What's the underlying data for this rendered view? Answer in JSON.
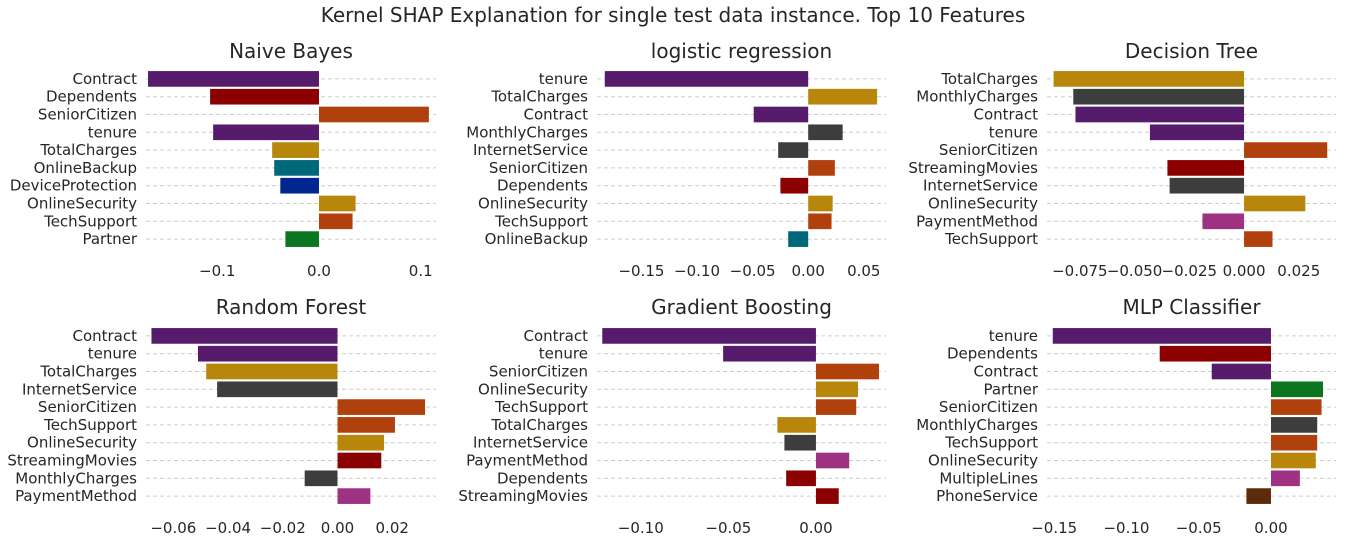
{
  "suptitle": "Kernel SHAP Explanation for single test data instance.  Top 10 Features",
  "colors": {
    "Contract": "#561b6b",
    "Dependents": "#8b0000",
    "SeniorCitizen": "#b0410d",
    "tenure": "#561b6b",
    "TotalCharges": "#b8860b",
    "OnlineBackup": "#00687a",
    "DeviceProtection": "#002790",
    "OnlineSecurity": "#b8860b",
    "TechSupport": "#b0410d",
    "Partner": "#0b7520",
    "MonthlyCharges": "#3d3d3d",
    "InternetService": "#3d3d3d",
    "StreamingMovies": "#8b0000",
    "PaymentMethod": "#9e3182",
    "MultipleLines": "#9e3182",
    "PhoneService": "#5c2b0b"
  },
  "chart_data": [
    {
      "type": "bar",
      "orientation": "horizontal",
      "title": "Naive Bayes",
      "categories": [
        "Contract",
        "Dependents",
        "SeniorCitizen",
        "tenure",
        "TotalCharges",
        "OnlineBackup",
        "DeviceProtection",
        "OnlineSecurity",
        "TechSupport",
        "Partner"
      ],
      "values": [
        -0.168,
        -0.107,
        0.108,
        -0.104,
        -0.046,
        -0.044,
        -0.038,
        0.036,
        0.033,
        -0.033
      ],
      "xlim": [
        -0.17,
        0.115
      ],
      "xticks": [
        -0.1,
        0.0,
        0.1
      ],
      "xtick_labels": [
        "−0.1",
        "0.0",
        "0.1"
      ]
    },
    {
      "type": "bar",
      "orientation": "horizontal",
      "title": "logistic regression",
      "categories": [
        "tenure",
        "TotalCharges",
        "Contract",
        "MonthlyCharges",
        "InternetService",
        "SeniorCitizen",
        "Dependents",
        "OnlineSecurity",
        "TechSupport",
        "OnlineBackup"
      ],
      "values": [
        -0.183,
        0.062,
        -0.049,
        0.031,
        -0.027,
        0.024,
        -0.025,
        0.022,
        0.021,
        -0.018
      ],
      "xlim": [
        -0.19,
        0.07
      ],
      "xticks": [
        -0.15,
        -0.1,
        -0.05,
        0.0,
        0.05
      ],
      "xtick_labels": [
        "−0.15",
        "−0.10",
        "−0.05",
        "0.00",
        "0.05"
      ]
    },
    {
      "type": "bar",
      "orientation": "horizontal",
      "title": "Decision Tree",
      "categories": [
        "TotalCharges",
        "MonthlyCharges",
        "Contract",
        "tenure",
        "SeniorCitizen",
        "StreamingMovies",
        "InternetService",
        "OnlineSecurity",
        "PaymentMethod",
        "TechSupport"
      ],
      "values": [
        -0.087,
        -0.078,
        -0.077,
        -0.043,
        0.038,
        -0.035,
        -0.034,
        0.028,
        -0.019,
        0.013
      ],
      "xlim": [
        -0.09,
        0.042
      ],
      "xticks": [
        -0.075,
        -0.05,
        -0.025,
        0.0,
        0.025
      ],
      "xtick_labels": [
        "−0.075",
        "−0.050",
        "−0.025",
        "0.000",
        "0.025"
      ]
    },
    {
      "type": "bar",
      "orientation": "horizontal",
      "title": "Random Forest",
      "categories": [
        "Contract",
        "tenure",
        "TotalCharges",
        "InternetService",
        "SeniorCitizen",
        "TechSupport",
        "OnlineSecurity",
        "StreamingMovies",
        "MonthlyCharges",
        "PaymentMethod"
      ],
      "values": [
        -0.068,
        -0.051,
        -0.048,
        -0.044,
        0.032,
        0.021,
        0.017,
        0.016,
        -0.012,
        0.012
      ],
      "xlim": [
        -0.07,
        0.036
      ],
      "xticks": [
        -0.06,
        -0.04,
        -0.02,
        0.0,
        0.02
      ],
      "xtick_labels": [
        "−0.06",
        "−0.04",
        "−0.02",
        "0.00",
        "0.02"
      ]
    },
    {
      "type": "bar",
      "orientation": "horizontal",
      "title": "Gradient Boosting",
      "categories": [
        "Contract",
        "tenure",
        "SeniorCitizen",
        "OnlineSecurity",
        "TechSupport",
        "TotalCharges",
        "InternetService",
        "PaymentMethod",
        "Dependents",
        "StreamingMovies"
      ],
      "values": [
        -0.122,
        -0.053,
        0.036,
        0.024,
        0.023,
        -0.022,
        -0.018,
        0.019,
        -0.017,
        0.013
      ],
      "xlim": [
        -0.125,
        0.04
      ],
      "xticks": [
        -0.1,
        -0.05,
        0.0
      ],
      "xtick_labels": [
        "−0.10",
        "−0.05",
        "0.00"
      ]
    },
    {
      "type": "bar",
      "orientation": "horizontal",
      "title": "MLP Classifier",
      "categories": [
        "tenure",
        "Dependents",
        "Contract",
        "Partner",
        "SeniorCitizen",
        "MonthlyCharges",
        "TechSupport",
        "OnlineSecurity",
        "MultipleLines",
        "PhoneService"
      ],
      "values": [
        -0.151,
        -0.077,
        -0.041,
        0.036,
        0.035,
        0.032,
        0.032,
        0.031,
        0.02,
        -0.017
      ],
      "xlim": [
        -0.155,
        0.045
      ],
      "xticks": [
        -0.15,
        -0.1,
        -0.05,
        0.0
      ],
      "xtick_labels": [
        "−0.15",
        "−0.10",
        "−0.05",
        "0.00"
      ]
    }
  ]
}
